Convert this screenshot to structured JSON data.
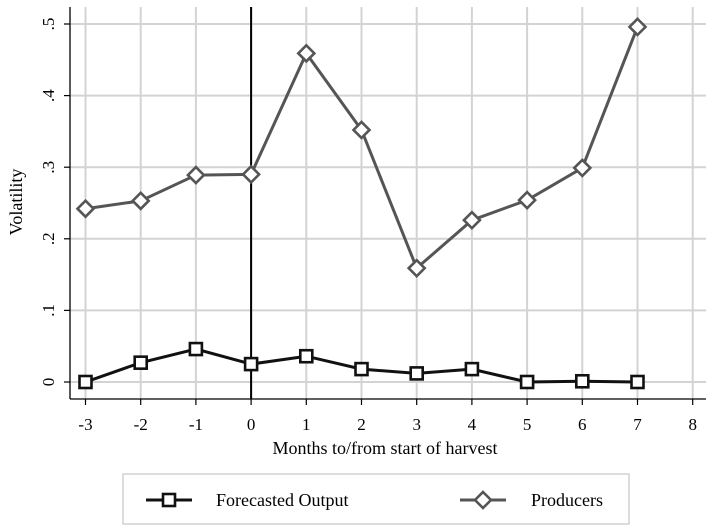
{
  "chart_data": {
    "type": "line",
    "xlabel": "Months to/from start of harvest",
    "ylabel": "Volatility",
    "xlim": [
      -3,
      8
    ],
    "ylim": [
      0,
      0.5
    ],
    "x_ticks": [
      -3,
      -2,
      -1,
      0,
      1,
      2,
      3,
      4,
      5,
      6,
      7,
      8
    ],
    "x_tick_labels": [
      "-3",
      "-2",
      "-1",
      "0",
      "1",
      "2",
      "3",
      "4",
      "5",
      "6",
      "7",
      "8"
    ],
    "y_ticks": [
      0,
      0.1,
      0.2,
      0.3,
      0.4,
      0.5
    ],
    "y_tick_labels": [
      "0",
      ".1",
      ".2",
      ".3",
      ".4",
      ".5"
    ],
    "grid": true,
    "reference_line_x": 0,
    "legend_position": "bottom",
    "x": [
      -3,
      -2,
      -1,
      0,
      1,
      2,
      3,
      4,
      5,
      6,
      7
    ],
    "series": [
      {
        "name": "Forecasted Output",
        "marker": "square",
        "color": "#111111",
        "values": [
          0.0,
          0.027,
          0.046,
          0.025,
          0.036,
          0.018,
          0.012,
          0.018,
          0.0,
          0.001,
          0.0
        ]
      },
      {
        "name": "Producers",
        "marker": "diamond",
        "color": "#555555",
        "values": [
          0.242,
          0.253,
          0.289,
          0.29,
          0.459,
          0.352,
          0.159,
          0.226,
          0.254,
          0.299,
          0.496
        ]
      }
    ]
  }
}
